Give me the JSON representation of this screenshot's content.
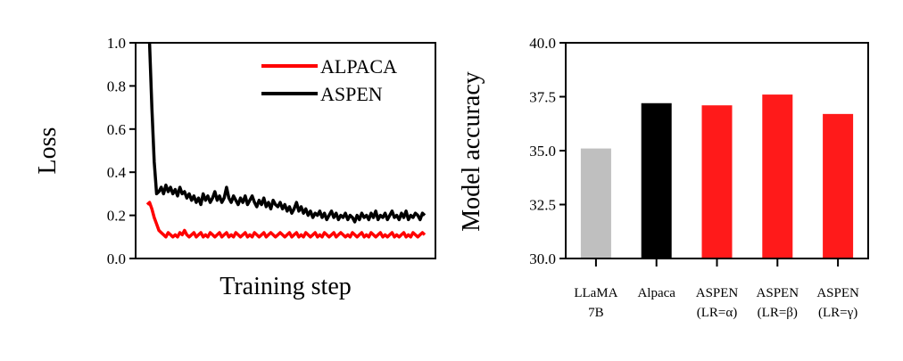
{
  "chart_data": [
    {
      "type": "line",
      "title": "",
      "xlabel": "Training step",
      "ylabel": "Loss",
      "ylim": [
        0.0,
        1.0
      ],
      "yticks": [
        "0.0",
        "0.2",
        "0.4",
        "0.6",
        "0.8",
        "1.0"
      ],
      "xticks": [],
      "legend_position": "top-right",
      "series": [
        {
          "name": "ALPACA",
          "color": "#ff0000",
          "values": [
            0.25,
            0.26,
            0.23,
            0.19,
            0.16,
            0.13,
            0.12,
            0.11,
            0.1,
            0.12,
            0.11,
            0.1,
            0.11,
            0.1,
            0.12,
            0.11,
            0.13,
            0.11,
            0.1,
            0.11,
            0.12,
            0.1,
            0.11,
            0.12,
            0.1,
            0.11,
            0.1,
            0.12,
            0.11,
            0.1,
            0.11,
            0.12,
            0.1,
            0.11,
            0.12,
            0.1,
            0.11,
            0.1,
            0.12,
            0.11,
            0.1,
            0.11,
            0.12,
            0.1,
            0.11,
            0.1,
            0.12,
            0.11,
            0.1,
            0.11,
            0.12,
            0.1,
            0.11,
            0.12,
            0.11,
            0.1,
            0.11,
            0.12,
            0.11,
            0.1,
            0.11,
            0.12,
            0.1,
            0.11,
            0.12,
            0.1,
            0.11,
            0.1,
            0.12,
            0.11,
            0.1,
            0.11,
            0.12,
            0.1,
            0.11,
            0.1,
            0.12,
            0.11,
            0.1,
            0.11,
            0.12,
            0.1,
            0.11,
            0.12,
            0.11,
            0.1,
            0.11,
            0.1,
            0.12,
            0.11,
            0.1,
            0.11,
            0.12,
            0.1,
            0.11,
            0.1,
            0.12,
            0.11,
            0.1,
            0.11,
            0.12,
            0.1,
            0.11,
            0.1,
            0.11,
            0.12,
            0.1,
            0.11,
            0.1,
            0.11,
            0.12,
            0.1,
            0.11,
            0.1,
            0.12,
            0.11,
            0.1,
            0.11,
            0.12,
            0.11
          ]
        },
        {
          "name": "ASPEN",
          "color": "#000000",
          "values": [
            1.05,
            1.0,
            0.7,
            0.45,
            0.3,
            0.31,
            0.33,
            0.3,
            0.34,
            0.31,
            0.33,
            0.3,
            0.32,
            0.29,
            0.33,
            0.3,
            0.31,
            0.28,
            0.3,
            0.27,
            0.29,
            0.26,
            0.28,
            0.25,
            0.3,
            0.27,
            0.29,
            0.26,
            0.28,
            0.31,
            0.27,
            0.29,
            0.26,
            0.28,
            0.33,
            0.28,
            0.26,
            0.29,
            0.27,
            0.25,
            0.28,
            0.26,
            0.29,
            0.25,
            0.27,
            0.29,
            0.26,
            0.24,
            0.27,
            0.25,
            0.28,
            0.24,
            0.26,
            0.23,
            0.27,
            0.25,
            0.24,
            0.26,
            0.23,
            0.25,
            0.22,
            0.24,
            0.21,
            0.23,
            0.26,
            0.22,
            0.24,
            0.21,
            0.23,
            0.2,
            0.22,
            0.19,
            0.21,
            0.2,
            0.22,
            0.19,
            0.21,
            0.18,
            0.2,
            0.22,
            0.19,
            0.21,
            0.18,
            0.2,
            0.19,
            0.21,
            0.18,
            0.2,
            0.19,
            0.17,
            0.2,
            0.18,
            0.21,
            0.19,
            0.2,
            0.18,
            0.21,
            0.19,
            0.22,
            0.18,
            0.2,
            0.19,
            0.21,
            0.18,
            0.2,
            0.22,
            0.19,
            0.2,
            0.18,
            0.21,
            0.19,
            0.22,
            0.18,
            0.2,
            0.19,
            0.21,
            0.2,
            0.18,
            0.21,
            0.2
          ]
        }
      ]
    },
    {
      "type": "bar",
      "title": "",
      "xlabel": "",
      "ylabel": "Model accuracy",
      "ylim": [
        30.0,
        40.0
      ],
      "yticks": [
        "30.0",
        "32.5",
        "35.0",
        "37.5",
        "40.0"
      ],
      "categories": [
        {
          "line1": "LLaMA",
          "line2": "7B"
        },
        {
          "line1": "Alpaca",
          "line2": ""
        },
        {
          "line1": "ASPEN",
          "line2": "(LR=α)"
        },
        {
          "line1": "ASPEN",
          "line2": "(LR=β)"
        },
        {
          "line1": "ASPEN",
          "line2": "(LR=γ)"
        }
      ],
      "values": [
        35.1,
        37.2,
        37.1,
        37.6,
        36.7
      ],
      "colors": [
        "#bfbfbf",
        "#000000",
        "#ff1a1a",
        "#ff1a1a",
        "#ff1a1a"
      ]
    }
  ]
}
